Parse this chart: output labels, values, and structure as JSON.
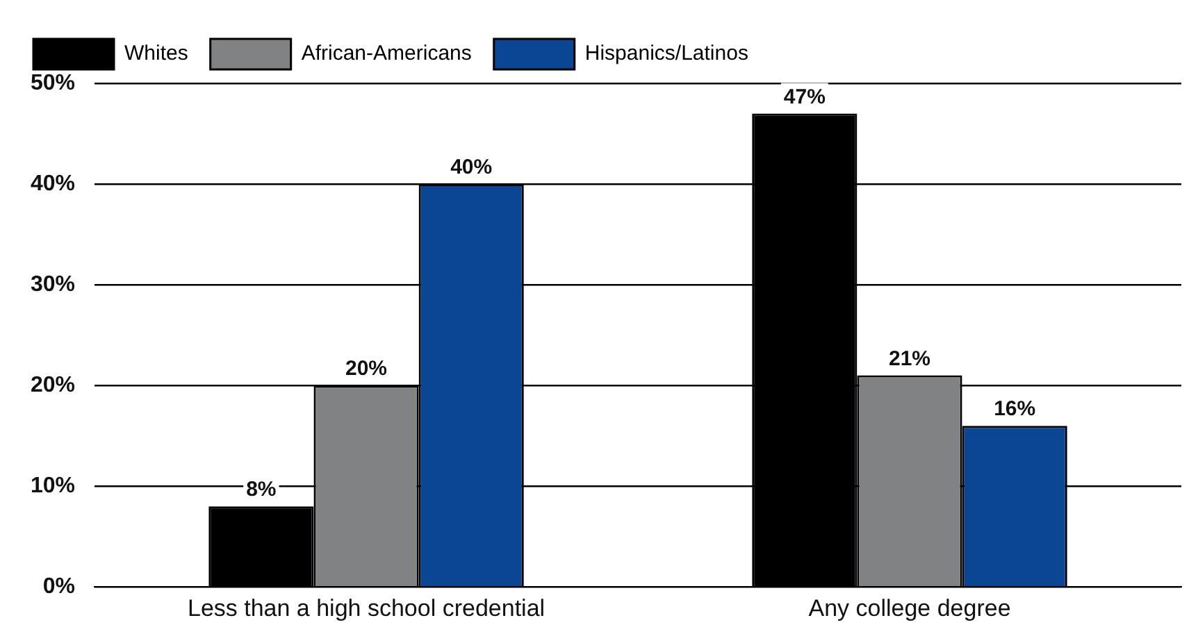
{
  "chart_data": {
    "type": "bar",
    "categories": [
      "Less than a high school credential",
      "Any college degree"
    ],
    "series": [
      {
        "name": "Whites",
        "color": "#000000",
        "values": [
          8,
          47
        ],
        "value_labels": [
          "8%",
          "47%"
        ]
      },
      {
        "name": "African-Americans",
        "color": "#808284",
        "values": [
          20,
          21
        ],
        "value_labels": [
          "20%",
          "21%"
        ]
      },
      {
        "name": "Hispanics/Latinos",
        "color": "#0b4694",
        "values": [
          40,
          16
        ],
        "value_labels": [
          "40%",
          "16%"
        ]
      }
    ],
    "ylim": [
      0,
      50
    ],
    "yticks": [
      {
        "value": 0,
        "label": "0%"
      },
      {
        "value": 10,
        "label": "10%"
      },
      {
        "value": 20,
        "label": "20%"
      },
      {
        "value": 30,
        "label": "30%"
      },
      {
        "value": 40,
        "label": "40%"
      },
      {
        "value": 50,
        "label": "50%"
      }
    ],
    "grid": "y",
    "legend": "top left"
  }
}
